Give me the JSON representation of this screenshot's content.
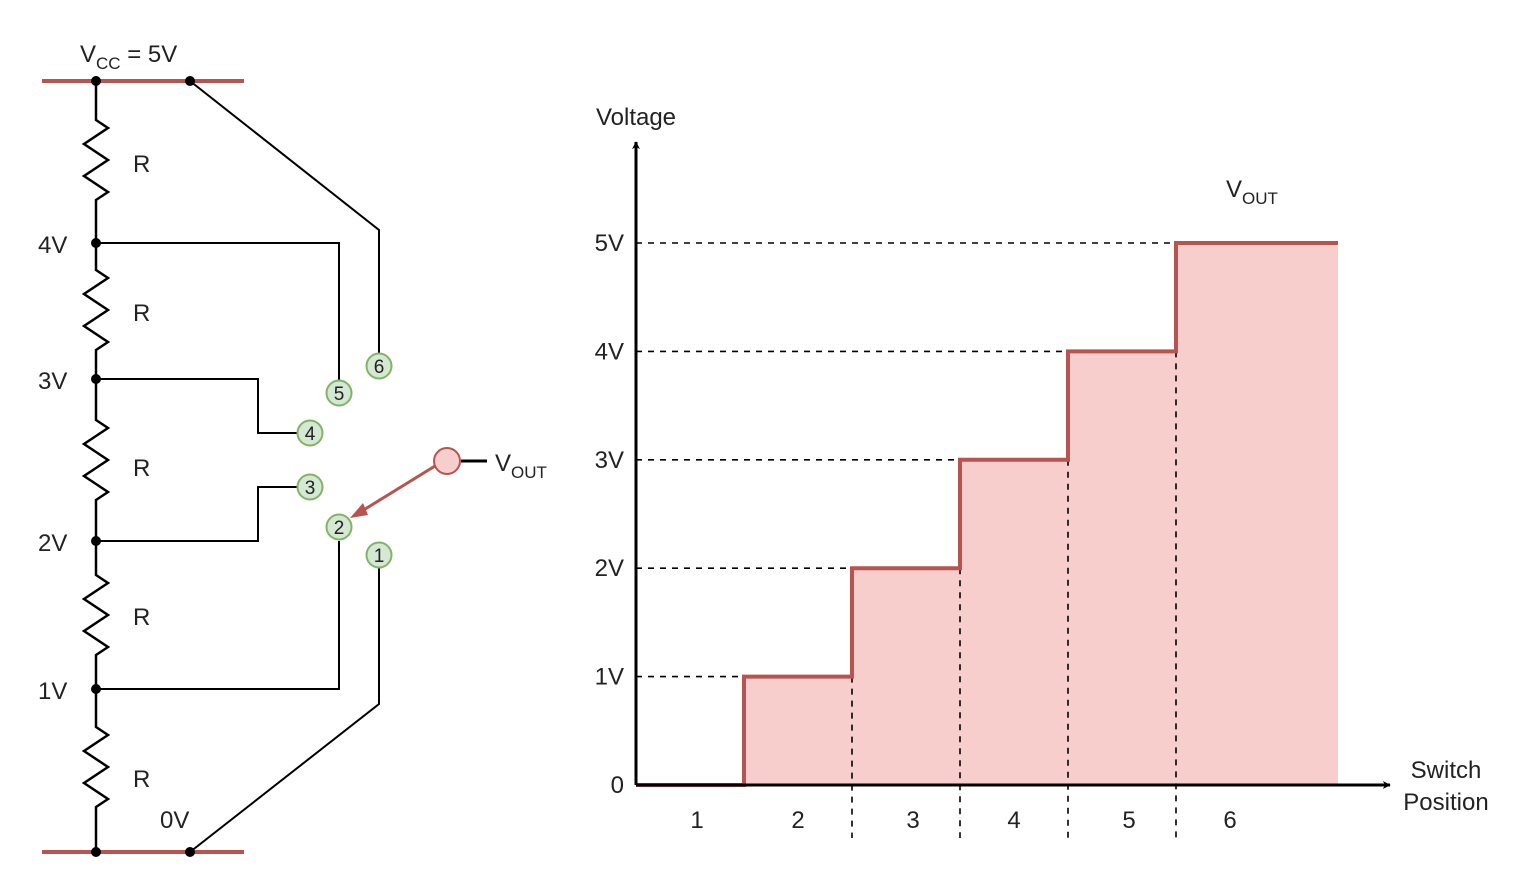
{
  "colors": {
    "wire": "#000000",
    "rail": "#b85450",
    "fill": "#f8cecc",
    "contact_fill": "#d5e8d4",
    "contact_stroke": "#82b366",
    "wiper_fill": "#f8cecc",
    "wiper_stroke": "#b85450"
  },
  "circuit": {
    "vcc": {
      "prefix": "V",
      "sub": "CC",
      "suffix": " = 5V"
    },
    "resistor_label": "R",
    "node_labels": [
      "4V",
      "3V",
      "2V",
      "1V"
    ],
    "ground_label": "0V",
    "contacts": [
      "6",
      "5",
      "4",
      "3",
      "2",
      "1"
    ],
    "output": {
      "prefix": "V",
      "sub": "OUT"
    },
    "selected_position": "2"
  },
  "chart": {
    "ylabel": "Voltage",
    "xlabel_line1": "Switch",
    "xlabel_line2": "Position",
    "series_label": {
      "prefix": "V",
      "sub": "OUT"
    },
    "y_tick_labels": [
      "0",
      "1V",
      "2V",
      "3V",
      "4V",
      "5V"
    ],
    "x_tick_labels": [
      "1",
      "2",
      "3",
      "4",
      "5",
      "6"
    ]
  },
  "chart_data": {
    "type": "area",
    "step": true,
    "categories": [
      "1",
      "2",
      "3",
      "4",
      "5",
      "6"
    ],
    "values": [
      0,
      1,
      2,
      3,
      4,
      5
    ],
    "ylim": [
      0,
      5
    ],
    "ylabel": "Voltage",
    "xlabel": "Switch Position",
    "grid": false
  }
}
